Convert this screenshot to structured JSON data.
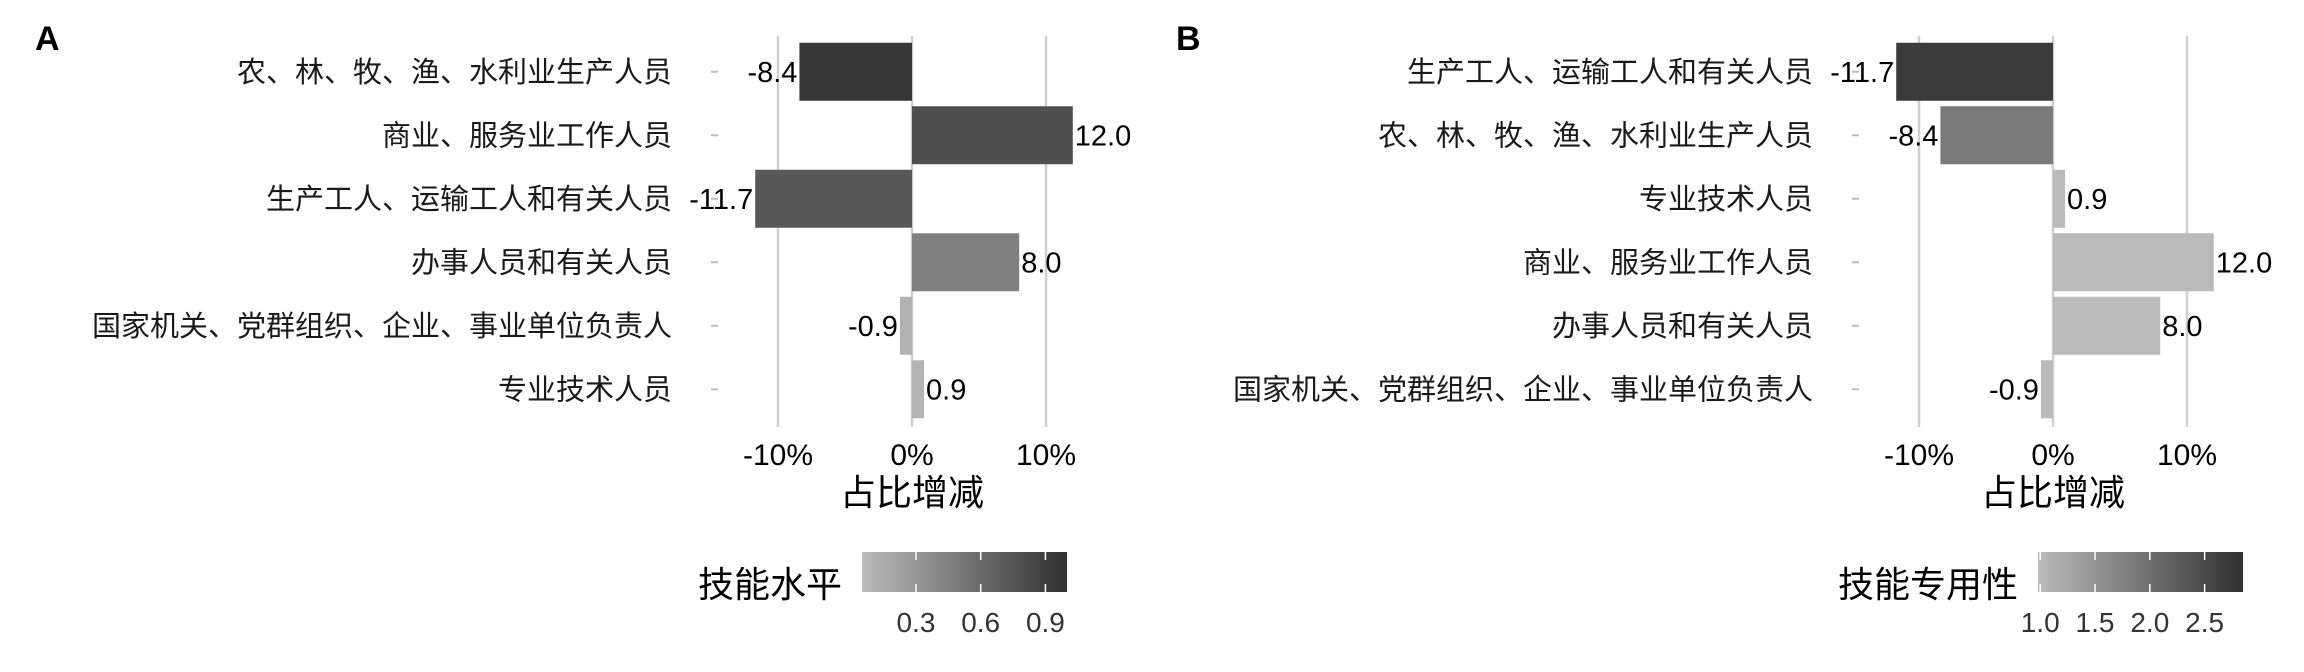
{
  "chart_data": [
    {
      "type": "bar",
      "orientation": "horizontal",
      "panel_label": "A",
      "categories": [
        "农、林、牧、渔、水利业生产人员",
        "商业、服务业工作人员",
        "生产工人、运输工人和有关人员",
        "办事人员和有关人员",
        "国家机关、党群组织、企业、事业单位负责人",
        "专业技术人员"
      ],
      "values": [
        -8.4,
        12.0,
        -11.7,
        8.0,
        -0.9,
        0.9
      ],
      "value_labels": [
        "-8.4",
        "12.0",
        "-11.7",
        "8.0",
        "-0.9",
        "0.9"
      ],
      "fill_values": [
        0.95,
        0.79,
        0.73,
        0.45,
        0.12,
        0.1
      ],
      "xlabel": "占比增减",
      "xticks": [
        -10,
        0,
        10
      ],
      "xtick_labels": [
        "-10%",
        "0%",
        "10%"
      ],
      "xlim": [
        -12.5,
        13.0
      ],
      "grid": "vertical-major",
      "legend": {
        "title": "技能水平",
        "type": "gradient",
        "range": [
          0.05,
          1.0
        ],
        "ticks": [
          0.3,
          0.6,
          0.9
        ],
        "tick_labels": [
          "0.3",
          "0.6",
          "0.9"
        ],
        "colors": [
          "#bbbbbb",
          "#303030"
        ],
        "placement": "bottom"
      }
    },
    {
      "type": "bar",
      "orientation": "horizontal",
      "panel_label": "B",
      "categories": [
        "生产工人、运输工人和有关人员",
        "农、林、牧、渔、水利业生产人员",
        "专业技术人员",
        "商业、服务业工作人员",
        "办事人员和有关人员",
        "国家机关、党群组织、企业、事业单位负责人"
      ],
      "values": [
        -11.7,
        -8.4,
        0.9,
        12.0,
        8.0,
        -0.9
      ],
      "value_labels": [
        "-11.7",
        "-8.4",
        "0.9",
        "12.0",
        "8.0",
        "-0.9"
      ],
      "fill_values": [
        2.7,
        1.85,
        1.0,
        1.0,
        1.0,
        1.0
      ],
      "xlabel": "占比增减",
      "xticks": [
        -10,
        0,
        10
      ],
      "xtick_labels": [
        "-10%",
        "0%",
        "10%"
      ],
      "xlim": [
        -12.5,
        13.0
      ],
      "grid": "vertical-major",
      "legend": {
        "title": "技能专用性",
        "type": "gradient",
        "range": [
          0.98,
          2.85
        ],
        "ticks": [
          1.0,
          1.5,
          2.0,
          2.5
        ],
        "tick_labels": [
          "1.0",
          "1.5",
          "2.0",
          "2.5"
        ],
        "colors": [
          "#bbbbbb",
          "#303030"
        ],
        "placement": "bottom"
      }
    }
  ]
}
